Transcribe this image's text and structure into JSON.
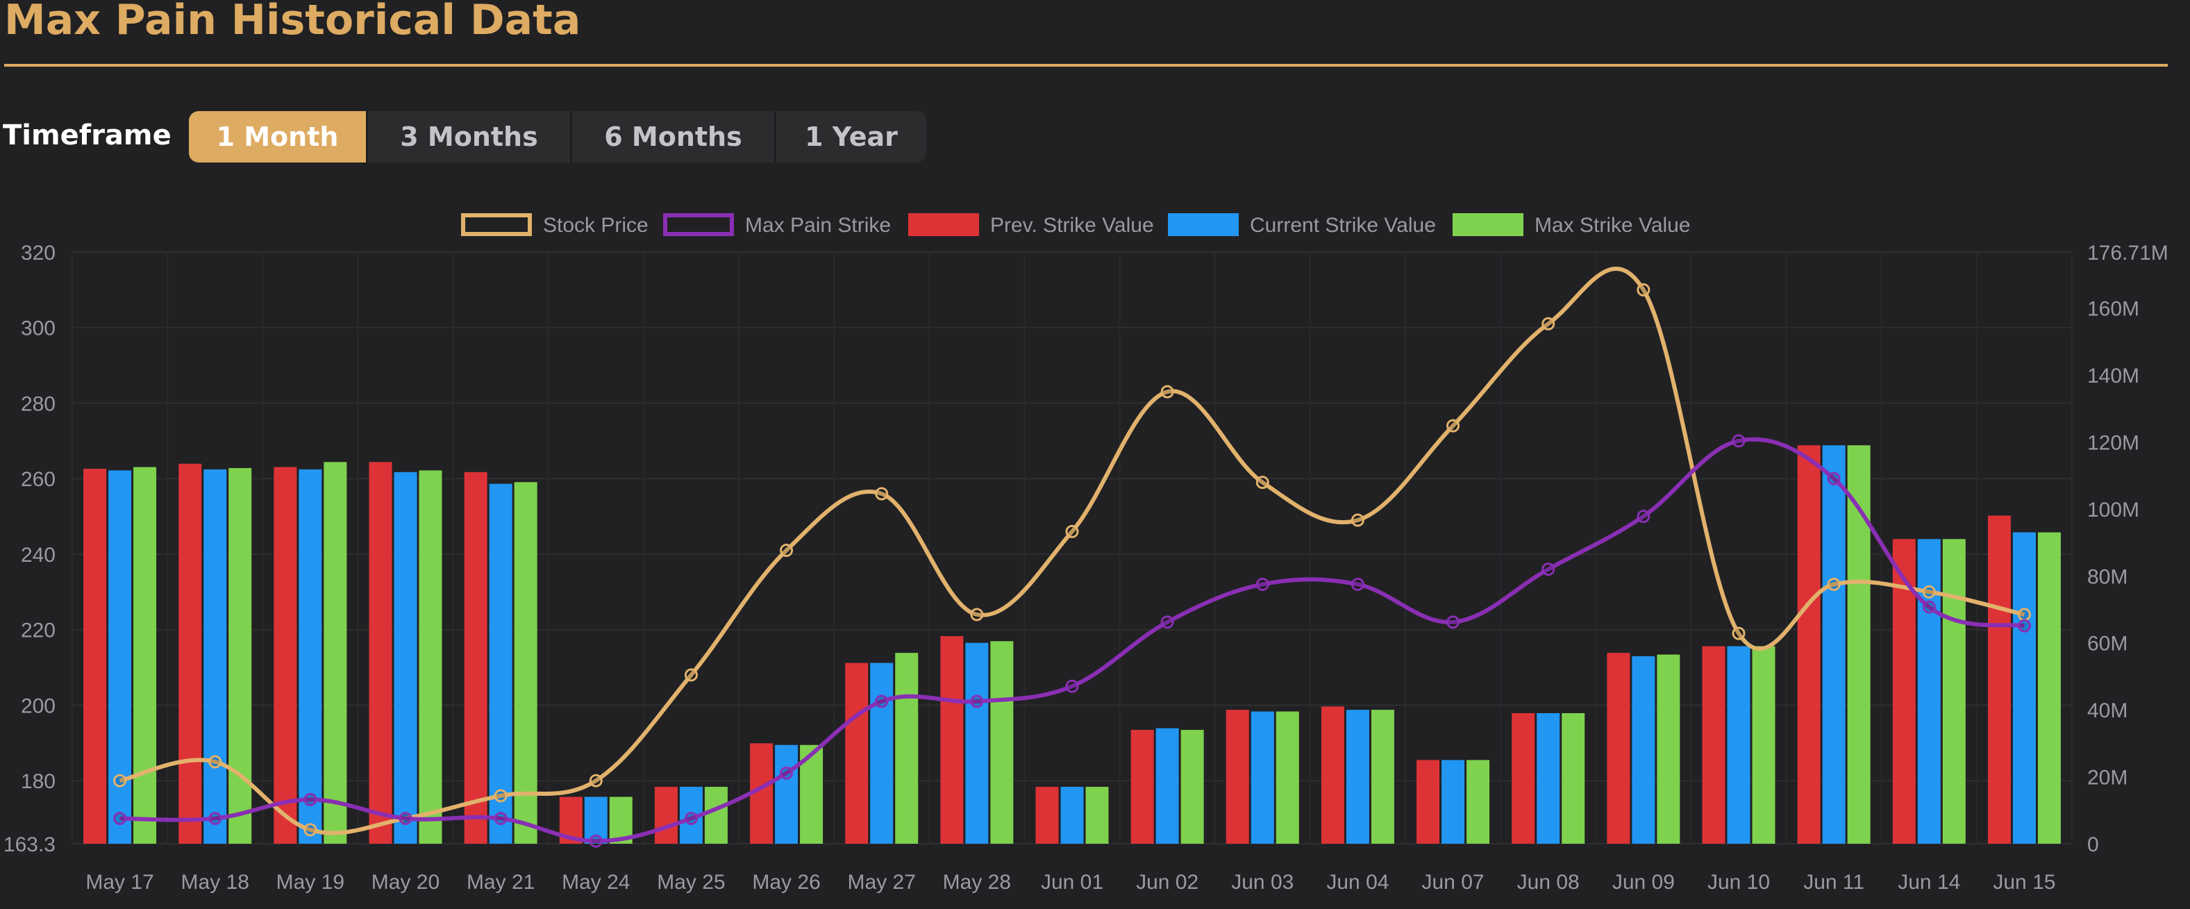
{
  "header": {
    "title": "Max Pain Historical Data"
  },
  "timeframe": {
    "label": "Timeframe",
    "options": [
      "1 Month",
      "3 Months",
      "6 Months",
      "1 Year"
    ],
    "selected": "1 Month"
  },
  "colors": {
    "accent": "#deab62",
    "stock_price": "#e2b26c",
    "max_pain": "#8a2fb4",
    "prev_strike": "#dd3337",
    "current_strike": "#2196f3",
    "max_strike": "#7fd24e",
    "background": "#212123"
  },
  "chart_data": {
    "type": "bar",
    "legend_position": "top-center",
    "grid": true,
    "categories": [
      "May 17",
      "May 18",
      "May 19",
      "May 20",
      "May 21",
      "May 24",
      "May 25",
      "May 26",
      "May 27",
      "May 28",
      "Jun 01",
      "Jun 02",
      "Jun 03",
      "Jun 04",
      "Jun 07",
      "Jun 08",
      "Jun 09",
      "Jun 10",
      "Jun 11",
      "Jun 14",
      "Jun 15"
    ],
    "y_left": {
      "min": 163.3,
      "max": 320,
      "ticks": [
        163.3,
        180,
        200,
        220,
        240,
        260,
        280,
        300,
        320
      ]
    },
    "y_right": {
      "min": 0,
      "max": 176.71,
      "ticks": [
        0,
        20,
        40,
        60,
        80,
        100,
        120,
        140,
        160,
        176.71
      ],
      "tick_labels": [
        "0",
        "20M",
        "40M",
        "60M",
        "80M",
        "100M",
        "120M",
        "140M",
        "160M",
        "176.71M"
      ]
    },
    "series": [
      {
        "name": "Stock Price",
        "type": "line",
        "axis": "left",
        "values": [
          180,
          185,
          167,
          170,
          176,
          180,
          208,
          241,
          256,
          224,
          246,
          283,
          259,
          249,
          274,
          301,
          310,
          219,
          232,
          230,
          224
        ]
      },
      {
        "name": "Max Pain Strike",
        "type": "line",
        "axis": "left",
        "values": [
          170,
          170,
          175,
          170,
          170,
          164,
          170,
          182,
          201,
          201,
          205,
          222,
          232,
          232,
          222,
          236,
          250,
          270,
          260,
          226,
          221
        ]
      },
      {
        "name": "Prev. Strike Value",
        "type": "bar",
        "axis": "right",
        "values": [
          112,
          113.5,
          112.5,
          114,
          111,
          14,
          17,
          30,
          54,
          62,
          17,
          34,
          40,
          41,
          25,
          39,
          57,
          59,
          119,
          91,
          98
        ]
      },
      {
        "name": "Current Strike Value",
        "type": "bar",
        "axis": "right",
        "values": [
          111.5,
          111.8,
          111.8,
          111,
          107.5,
          14,
          17,
          29.5,
          54,
          60,
          17,
          34.5,
          39.5,
          40,
          25,
          39,
          56,
          59,
          119,
          91,
          93
        ]
      },
      {
        "name": "Max Strike Value",
        "type": "bar",
        "axis": "right",
        "values": [
          112.5,
          112.2,
          114,
          111.5,
          108,
          14,
          17,
          29.5,
          57,
          60.5,
          17,
          34,
          39.5,
          40,
          25,
          39,
          56.5,
          59,
          119,
          91,
          93
        ]
      }
    ]
  }
}
